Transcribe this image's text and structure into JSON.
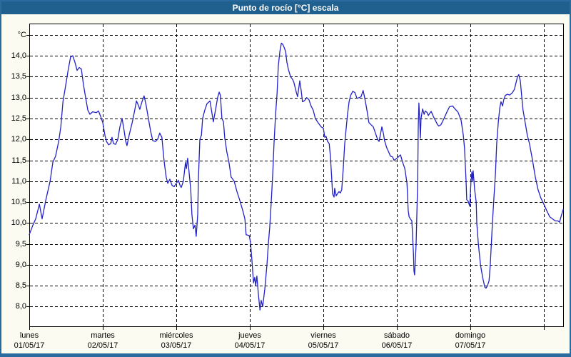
{
  "window": {
    "title": "Punto de rocío [°C] escala"
  },
  "colors": {
    "titlebar": "#1f608f",
    "frame": "#2a6a9e",
    "curve": "#2121c8",
    "grid": "#000000",
    "plot_background": "#ffffff",
    "region_background": "#fbfbf2",
    "text": "#000000"
  },
  "chart_data": {
    "type": "line",
    "title": "Punto de rocío [°C] escala",
    "legend": "none",
    "grid": "dashed black, horizontal every 0.5 °C, vertical at each day",
    "y_axis": {
      "unit_label": "°C",
      "min": 8.0,
      "max": 14.5,
      "step": 0.5,
      "decimal_separator": ",",
      "tick_labels": [
        "14,0",
        "13,5",
        "13,0",
        "12,5",
        "12,0",
        "11,5",
        "11,0",
        "10,5",
        "10,0",
        "9,5",
        "9,0",
        "8,5",
        "8,0"
      ]
    },
    "x_axis": {
      "days": [
        {
          "name": "lunes",
          "date": "01/05/17"
        },
        {
          "name": "martes",
          "date": "02/05/17"
        },
        {
          "name": "miércoles",
          "date": "03/05/17"
        },
        {
          "name": "jueves",
          "date": "04/05/17"
        },
        {
          "name": "viernes",
          "date": "05/05/17"
        },
        {
          "name": "sábado",
          "date": "06/05/17"
        },
        {
          "name": "domingo",
          "date": "07/05/17"
        }
      ],
      "hours_total": 174.3
    },
    "value_window": {
      "top": 14.77,
      "bottom": 7.53
    },
    "series": [
      {
        "name": "Punto de rocío",
        "color": "#2121c8",
        "points_format": "[hours since lunes 00:00, °C]",
        "points": [
          [
            0.0,
            9.72
          ],
          [
            1.2,
            9.95
          ],
          [
            2.1,
            10.1
          ],
          [
            3.3,
            10.45
          ],
          [
            4.2,
            10.1
          ],
          [
            5.4,
            10.55
          ],
          [
            6.8,
            11.0
          ],
          [
            7.7,
            11.45
          ],
          [
            8.6,
            11.6
          ],
          [
            9.6,
            11.95
          ],
          [
            10.3,
            12.3
          ],
          [
            11.0,
            12.9
          ],
          [
            11.9,
            13.3
          ],
          [
            12.8,
            13.7
          ],
          [
            13.5,
            13.97
          ],
          [
            14.2,
            14.0
          ],
          [
            14.9,
            13.85
          ],
          [
            15.6,
            13.65
          ],
          [
            16.3,
            13.72
          ],
          [
            17.0,
            13.68
          ],
          [
            17.7,
            13.3
          ],
          [
            18.4,
            13.0
          ],
          [
            19.1,
            12.7
          ],
          [
            19.8,
            12.6
          ],
          [
            20.7,
            12.66
          ],
          [
            21.9,
            12.64
          ],
          [
            22.6,
            12.68
          ],
          [
            23.3,
            12.55
          ],
          [
            24.0,
            12.4
          ],
          [
            24.7,
            12.1
          ],
          [
            25.2,
            11.95
          ],
          [
            25.9,
            11.87
          ],
          [
            26.6,
            11.9
          ],
          [
            27.0,
            12.05
          ],
          [
            27.5,
            11.9
          ],
          [
            28.2,
            11.88
          ],
          [
            28.9,
            12.0
          ],
          [
            29.6,
            12.3
          ],
          [
            30.3,
            12.5
          ],
          [
            31.0,
            12.2
          ],
          [
            31.5,
            11.95
          ],
          [
            31.9,
            11.85
          ],
          [
            32.6,
            12.1
          ],
          [
            33.6,
            12.4
          ],
          [
            34.3,
            12.65
          ],
          [
            35.0,
            12.92
          ],
          [
            35.7,
            12.8
          ],
          [
            36.1,
            12.72
          ],
          [
            36.8,
            12.9
          ],
          [
            37.5,
            13.04
          ],
          [
            38.2,
            12.8
          ],
          [
            38.9,
            12.5
          ],
          [
            39.6,
            12.2
          ],
          [
            40.3,
            11.97
          ],
          [
            41.2,
            11.95
          ],
          [
            41.9,
            12.0
          ],
          [
            42.6,
            12.15
          ],
          [
            43.3,
            12.05
          ],
          [
            44.0,
            11.5
          ],
          [
            44.7,
            11.1
          ],
          [
            45.2,
            10.95
          ],
          [
            45.9,
            11.05
          ],
          [
            46.6,
            10.9
          ],
          [
            47.3,
            10.87
          ],
          [
            48.0,
            10.95
          ],
          [
            48.7,
            11.02
          ],
          [
            49.2,
            10.9
          ],
          [
            49.6,
            10.85
          ],
          [
            50.3,
            11.0
          ],
          [
            51.0,
            11.45
          ],
          [
            51.3,
            11.3
          ],
          [
            51.7,
            11.55
          ],
          [
            52.2,
            11.2
          ],
          [
            52.7,
            10.8
          ],
          [
            53.1,
            10.2
          ],
          [
            53.6,
            9.86
          ],
          [
            54.1,
            9.95
          ],
          [
            54.5,
            9.68
          ],
          [
            55.0,
            10.2
          ],
          [
            55.2,
            11.0
          ],
          [
            55.7,
            12.0
          ],
          [
            56.2,
            12.1
          ],
          [
            56.6,
            12.5
          ],
          [
            57.3,
            12.7
          ],
          [
            58.0,
            12.85
          ],
          [
            59.0,
            12.92
          ],
          [
            59.7,
            12.6
          ],
          [
            60.1,
            12.42
          ],
          [
            60.8,
            12.7
          ],
          [
            61.5,
            13.0
          ],
          [
            62.0,
            13.13
          ],
          [
            62.4,
            13.05
          ],
          [
            62.9,
            12.5
          ],
          [
            63.4,
            12.42
          ],
          [
            63.8,
            12.05
          ],
          [
            64.5,
            11.7
          ],
          [
            65.2,
            11.45
          ],
          [
            65.9,
            11.1
          ],
          [
            66.9,
            11.0
          ],
          [
            67.8,
            10.75
          ],
          [
            68.7,
            10.55
          ],
          [
            69.7,
            10.3
          ],
          [
            70.4,
            10.1
          ],
          [
            70.8,
            9.72
          ],
          [
            71.8,
            9.7
          ],
          [
            72.2,
            9.55
          ],
          [
            72.7,
            9.1
          ],
          [
            73.2,
            8.57
          ],
          [
            73.6,
            8.7
          ],
          [
            73.9,
            8.5
          ],
          [
            74.3,
            8.73
          ],
          [
            74.8,
            8.3
          ],
          [
            75.3,
            7.92
          ],
          [
            75.7,
            8.15
          ],
          [
            76.2,
            8.0
          ],
          [
            76.9,
            8.42
          ],
          [
            77.6,
            9.0
          ],
          [
            78.1,
            9.55
          ],
          [
            78.5,
            9.9
          ],
          [
            79.0,
            10.5
          ],
          [
            79.5,
            11.2
          ],
          [
            79.9,
            11.9
          ],
          [
            80.4,
            12.6
          ],
          [
            80.9,
            13.1
          ],
          [
            81.3,
            13.75
          ],
          [
            81.8,
            14.1
          ],
          [
            82.3,
            14.3
          ],
          [
            82.7,
            14.28
          ],
          [
            83.2,
            14.2
          ],
          [
            83.7,
            14.1
          ],
          [
            84.1,
            13.85
          ],
          [
            84.6,
            13.67
          ],
          [
            85.3,
            13.5
          ],
          [
            86.0,
            13.43
          ],
          [
            86.4,
            13.36
          ],
          [
            87.1,
            13.15
          ],
          [
            87.6,
            13.02
          ],
          [
            88.3,
            13.4
          ],
          [
            88.8,
            13.15
          ],
          [
            89.2,
            12.9
          ],
          [
            89.9,
            12.93
          ],
          [
            90.6,
            13.0
          ],
          [
            91.3,
            12.95
          ],
          [
            92.0,
            12.8
          ],
          [
            92.7,
            12.7
          ],
          [
            93.4,
            12.5
          ],
          [
            94.1,
            12.42
          ],
          [
            94.8,
            12.35
          ],
          [
            95.3,
            12.3
          ],
          [
            96.0,
            12.27
          ],
          [
            96.5,
            12.05
          ],
          [
            96.9,
            12.07
          ],
          [
            97.4,
            11.95
          ],
          [
            97.9,
            11.9
          ],
          [
            98.3,
            11.6
          ],
          [
            98.8,
            11.0
          ],
          [
            99.0,
            10.7
          ],
          [
            99.5,
            10.62
          ],
          [
            99.7,
            10.83
          ],
          [
            100.2,
            10.65
          ],
          [
            100.6,
            10.7
          ],
          [
            101.1,
            10.75
          ],
          [
            101.6,
            10.72
          ],
          [
            102.0,
            10.8
          ],
          [
            102.5,
            11.3
          ],
          [
            103.0,
            11.9
          ],
          [
            103.5,
            12.3
          ],
          [
            103.9,
            12.6
          ],
          [
            104.4,
            12.9
          ],
          [
            104.9,
            13.05
          ],
          [
            105.6,
            13.15
          ],
          [
            106.3,
            13.12
          ],
          [
            107.0,
            12.98
          ],
          [
            107.7,
            13.0
          ],
          [
            108.3,
            13.02
          ],
          [
            109.0,
            13.17
          ],
          [
            109.5,
            13.0
          ],
          [
            110.2,
            12.72
          ],
          [
            110.9,
            12.4
          ],
          [
            111.6,
            12.35
          ],
          [
            112.3,
            12.3
          ],
          [
            113.0,
            12.15
          ],
          [
            113.7,
            12.0
          ],
          [
            114.2,
            11.95
          ],
          [
            114.6,
            12.1
          ],
          [
            115.1,
            12.3
          ],
          [
            115.6,
            12.15
          ],
          [
            116.0,
            11.97
          ],
          [
            116.7,
            11.8
          ],
          [
            117.2,
            11.72
          ],
          [
            117.9,
            11.6
          ],
          [
            118.6,
            11.58
          ],
          [
            119.1,
            11.5
          ],
          [
            119.5,
            11.52
          ],
          [
            120.0,
            11.55
          ],
          [
            120.5,
            11.58
          ],
          [
            121.2,
            11.63
          ],
          [
            121.9,
            11.45
          ],
          [
            122.6,
            11.3
          ],
          [
            123.3,
            10.95
          ],
          [
            123.7,
            10.3
          ],
          [
            124.0,
            10.15
          ],
          [
            124.4,
            10.1
          ],
          [
            124.9,
            10.05
          ],
          [
            125.4,
            9.3
          ],
          [
            125.6,
            8.85
          ],
          [
            125.8,
            8.76
          ],
          [
            126.3,
            9.5
          ],
          [
            126.8,
            11.0
          ],
          [
            127.0,
            12.3
          ],
          [
            127.2,
            12.87
          ],
          [
            127.5,
            12.4
          ],
          [
            127.7,
            12.03
          ],
          [
            127.9,
            12.5
          ],
          [
            128.4,
            12.73
          ],
          [
            128.9,
            12.6
          ],
          [
            129.3,
            12.68
          ],
          [
            129.8,
            12.65
          ],
          [
            130.3,
            12.57
          ],
          [
            130.7,
            12.62
          ],
          [
            131.2,
            12.67
          ],
          [
            131.9,
            12.55
          ],
          [
            132.6,
            12.45
          ],
          [
            133.3,
            12.35
          ],
          [
            133.7,
            12.32
          ],
          [
            134.4,
            12.35
          ],
          [
            135.4,
            12.5
          ],
          [
            136.3,
            12.65
          ],
          [
            137.2,
            12.78
          ],
          [
            138.2,
            12.8
          ],
          [
            139.1,
            12.72
          ],
          [
            140.0,
            12.65
          ],
          [
            141.0,
            12.45
          ],
          [
            141.7,
            12.1
          ],
          [
            142.1,
            11.8
          ],
          [
            142.6,
            11.0
          ],
          [
            142.8,
            10.56
          ],
          [
            143.3,
            10.52
          ],
          [
            143.8,
            10.4
          ],
          [
            144.2,
            11.0
          ],
          [
            144.5,
            11.22
          ],
          [
            144.7,
            11.0
          ],
          [
            144.9,
            11.25
          ],
          [
            145.4,
            10.8
          ],
          [
            145.9,
            10.5
          ],
          [
            146.1,
            10.0
          ],
          [
            146.6,
            9.5
          ],
          [
            147.3,
            9.0
          ],
          [
            148.0,
            8.7
          ],
          [
            148.7,
            8.47
          ],
          [
            149.1,
            8.44
          ],
          [
            149.6,
            8.5
          ],
          [
            150.1,
            8.62
          ],
          [
            150.5,
            9.0
          ],
          [
            151.2,
            10.0
          ],
          [
            151.7,
            10.6
          ],
          [
            152.2,
            11.2
          ],
          [
            152.6,
            11.9
          ],
          [
            153.1,
            12.4
          ],
          [
            153.6,
            12.75
          ],
          [
            154.0,
            12.9
          ],
          [
            154.5,
            12.8
          ],
          [
            154.9,
            12.95
          ],
          [
            155.4,
            13.05
          ],
          [
            156.1,
            13.08
          ],
          [
            156.8,
            13.06
          ],
          [
            157.5,
            13.1
          ],
          [
            158.0,
            13.15
          ],
          [
            158.4,
            13.2
          ],
          [
            158.9,
            13.35
          ],
          [
            159.4,
            13.5
          ],
          [
            159.8,
            13.55
          ],
          [
            160.3,
            13.4
          ],
          [
            160.8,
            13.0
          ],
          [
            161.2,
            12.7
          ],
          [
            161.9,
            12.4
          ],
          [
            162.6,
            12.1
          ],
          [
            163.3,
            11.9
          ],
          [
            164.3,
            11.5
          ],
          [
            165.2,
            11.1
          ],
          [
            166.1,
            10.8
          ],
          [
            167.0,
            10.6
          ],
          [
            168.0,
            10.45
          ],
          [
            168.9,
            10.3
          ],
          [
            169.9,
            10.15
          ],
          [
            170.8,
            10.1
          ],
          [
            171.7,
            10.05
          ],
          [
            172.6,
            10.05
          ],
          [
            173.1,
            10.02
          ],
          [
            173.6,
            10.15
          ],
          [
            174.3,
            10.32
          ]
        ]
      }
    ]
  }
}
